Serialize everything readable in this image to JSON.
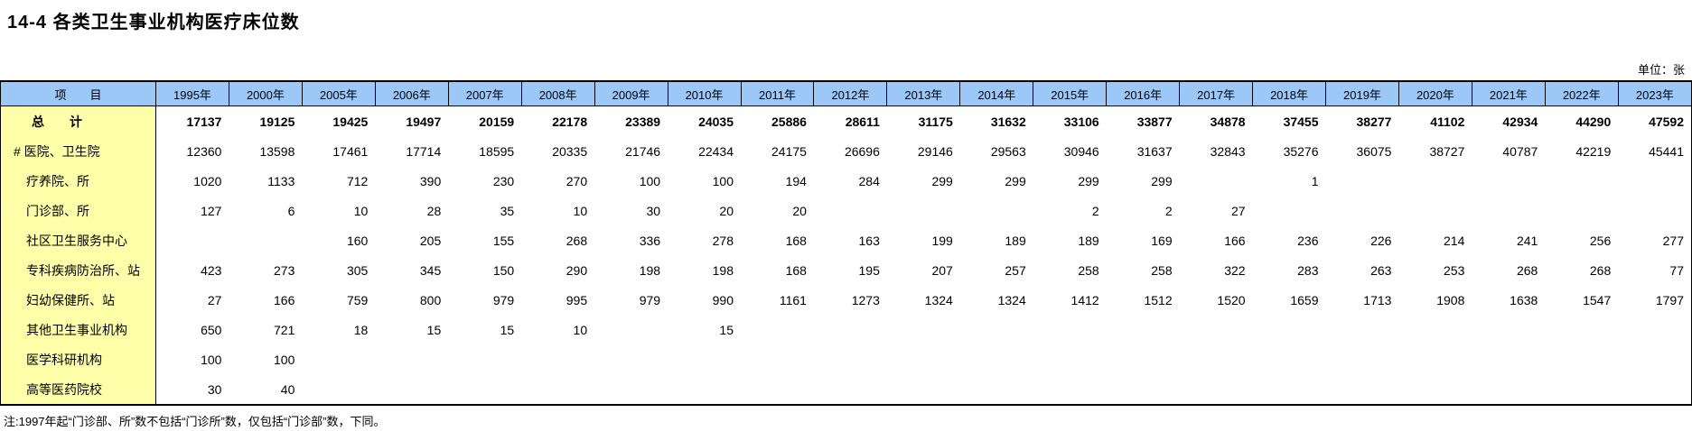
{
  "title": "14-4  各类卫生事业机构医疗床位数",
  "unit_label": "单位：张",
  "table": {
    "item_header": "项　　目",
    "years": [
      "1995年",
      "2000年",
      "2005年",
      "2006年",
      "2007年",
      "2008年",
      "2009年",
      "2010年",
      "2011年",
      "2012年",
      "2013年",
      "2014年",
      "2015年",
      "2016年",
      "2017年",
      "2018年",
      "2019年",
      "2020年",
      "2021年",
      "2022年",
      "2023年"
    ],
    "rows": [
      {
        "label": "总　　计",
        "level": "total",
        "values": [
          "17137",
          "19125",
          "19425",
          "19497",
          "20159",
          "22178",
          "23389",
          "24035",
          "25886",
          "28611",
          "31175",
          "31632",
          "33106",
          "33877",
          "34878",
          "37455",
          "38277",
          "41102",
          "42934",
          "44290",
          "47592"
        ]
      },
      {
        "label": "#  医院、卫生院",
        "level": "hash",
        "values": [
          "12360",
          "13598",
          "17461",
          "17714",
          "18595",
          "20335",
          "21746",
          "22434",
          "24175",
          "26696",
          "29146",
          "29563",
          "30946",
          "31637",
          "32843",
          "35276",
          "36075",
          "38727",
          "40787",
          "42219",
          "45441"
        ]
      },
      {
        "label": "疗养院、所",
        "level": "sub",
        "values": [
          "1020",
          "1133",
          "712",
          "390",
          "230",
          "270",
          "100",
          "100",
          "194",
          "284",
          "299",
          "299",
          "299",
          "299",
          "",
          "1",
          "",
          "",
          "",
          "",
          ""
        ]
      },
      {
        "label": "门诊部、所",
        "level": "sub",
        "values": [
          "127",
          "6",
          "10",
          "28",
          "35",
          "10",
          "30",
          "20",
          "20",
          "",
          "",
          "",
          "2",
          "2",
          "27",
          "",
          "",
          "",
          "",
          "",
          ""
        ]
      },
      {
        "label": "社区卫生服务中心",
        "level": "sub",
        "values": [
          "",
          "",
          "160",
          "205",
          "155",
          "268",
          "336",
          "278",
          "168",
          "163",
          "199",
          "189",
          "189",
          "169",
          "166",
          "236",
          "226",
          "214",
          "241",
          "256",
          "277"
        ]
      },
      {
        "label": "专科疾病防治所、站",
        "level": "sub",
        "values": [
          "423",
          "273",
          "305",
          "345",
          "150",
          "290",
          "198",
          "198",
          "168",
          "195",
          "207",
          "257",
          "258",
          "258",
          "322",
          "283",
          "263",
          "253",
          "268",
          "268",
          "77"
        ]
      },
      {
        "label": "妇幼保健所、站",
        "level": "sub",
        "values": [
          "27",
          "166",
          "759",
          "800",
          "979",
          "995",
          "979",
          "990",
          "1161",
          "1273",
          "1324",
          "1324",
          "1412",
          "1512",
          "1520",
          "1659",
          "1713",
          "1908",
          "1638",
          "1547",
          "1797"
        ]
      },
      {
        "label": "其他卫生事业机构",
        "level": "sub",
        "values": [
          "650",
          "721",
          "18",
          "15",
          "15",
          "10",
          "",
          "15",
          "",
          "",
          "",
          "",
          "",
          "",
          "",
          "",
          "",
          "",
          "",
          "",
          ""
        ]
      },
      {
        "label": "医学科研机构",
        "level": "sub",
        "values": [
          "100",
          "100",
          "",
          "",
          "",
          "",
          "",
          "",
          "",
          "",
          "",
          "",
          "",
          "",
          "",
          "",
          "",
          "",
          "",
          "",
          ""
        ]
      },
      {
        "label": "高等医药院校",
        "level": "sub",
        "values": [
          "30",
          "40",
          "",
          "",
          "",
          "",
          "",
          "",
          "",
          "",
          "",
          "",
          "",
          "",
          "",
          "",
          "",
          "",
          "",
          "",
          ""
        ]
      }
    ]
  },
  "footnote": "注:1997年起“门诊部、所”数不包括“门诊所”数，仅包括“门诊部”数，下同。",
  "colors": {
    "header_bg": "#9cc8f7",
    "item_col_bg": "#ffffa9",
    "border": "#000000",
    "page_bg": "#ffffff"
  }
}
